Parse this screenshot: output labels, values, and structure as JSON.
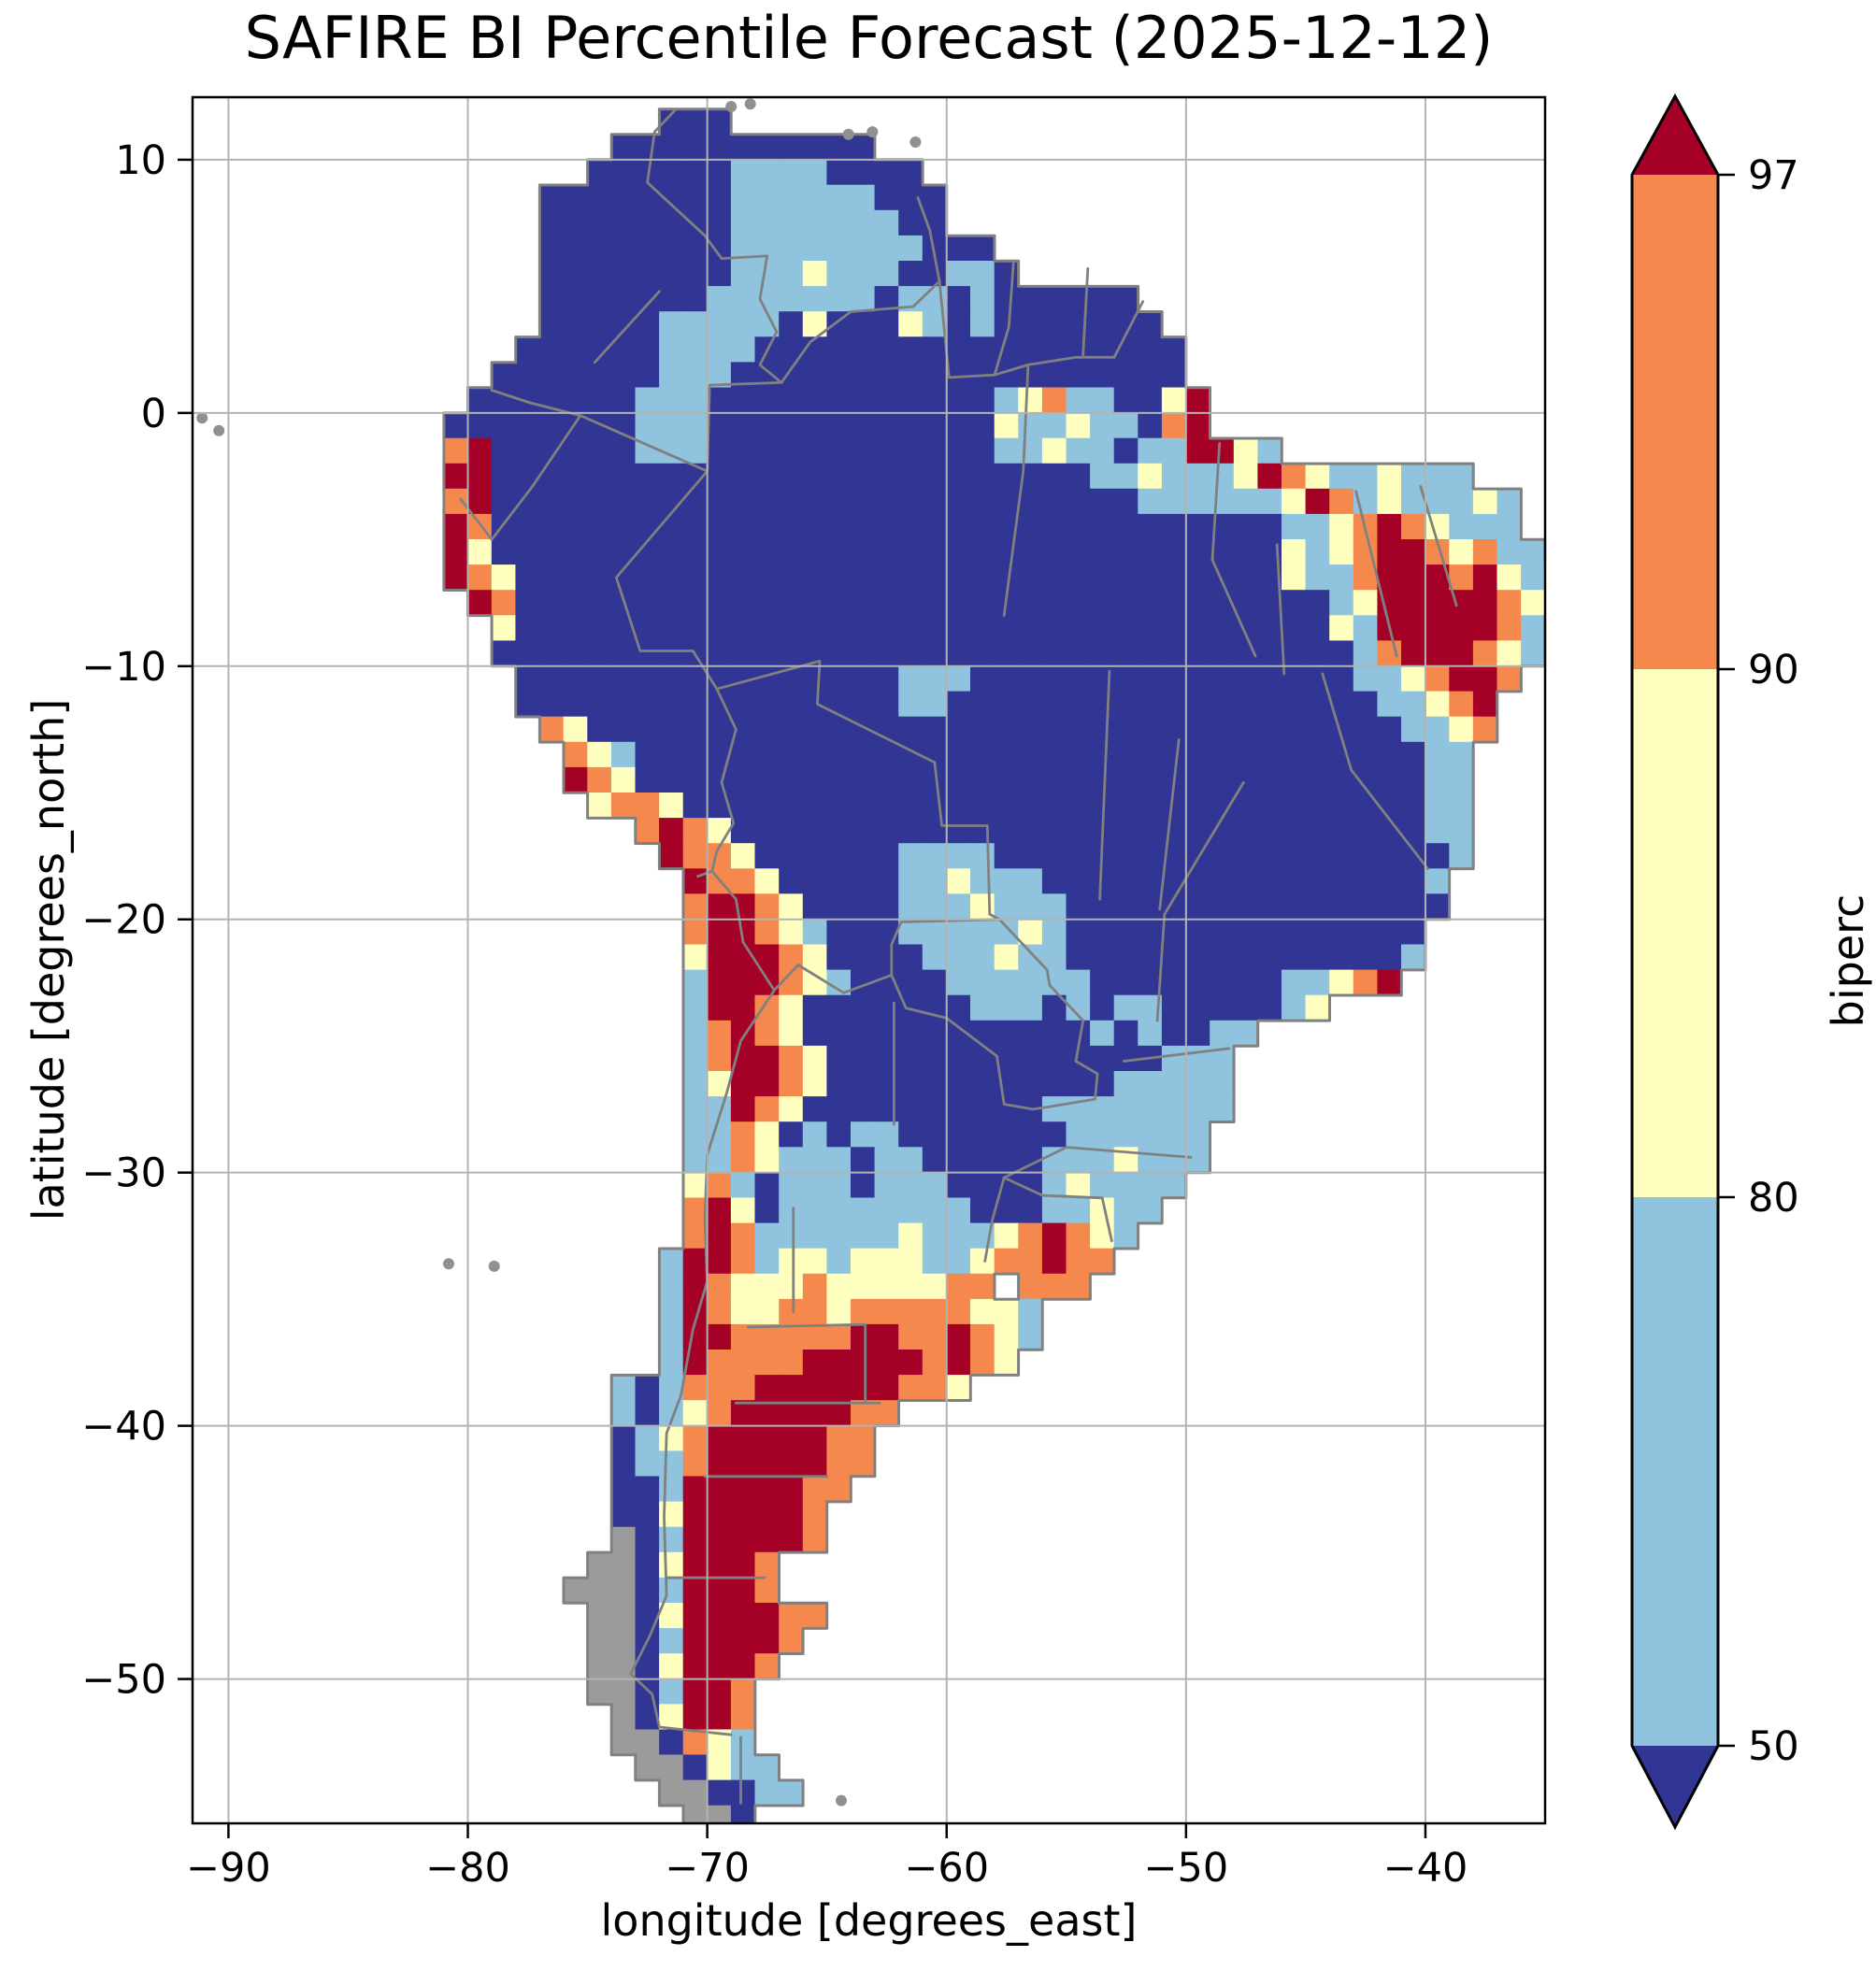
{
  "title": "SAFIRE BI Percentile Forecast (2025-12-12)",
  "axes": {
    "xlabel": "longitude [degrees_east]",
    "ylabel": "latitude [degrees_north]",
    "xticks": [
      {
        "value": -90,
        "label": "−90"
      },
      {
        "value": -80,
        "label": "−80"
      },
      {
        "value": -70,
        "label": "−70"
      },
      {
        "value": -60,
        "label": "−60"
      },
      {
        "value": -50,
        "label": "−50"
      },
      {
        "value": -40,
        "label": "−40"
      }
    ],
    "yticks": [
      {
        "value": 10,
        "label": "10"
      },
      {
        "value": 0,
        "label": "0"
      },
      {
        "value": -10,
        "label": "−10"
      },
      {
        "value": -20,
        "label": "−20"
      },
      {
        "value": -30,
        "label": "−30"
      },
      {
        "value": -40,
        "label": "−40"
      },
      {
        "value": -50,
        "label": "−50"
      }
    ],
    "xlim_deg": [
      -91.5,
      -35.0
    ],
    "ylim_deg": [
      -55.7,
      12.47
    ]
  },
  "colorbar": {
    "label": "biperc",
    "boundaries": [
      50,
      80,
      90,
      97
    ],
    "ticks": [
      {
        "label": "97"
      },
      {
        "label": "90"
      },
      {
        "label": "80"
      },
      {
        "label": "50"
      }
    ],
    "segment_colors_top_to_bottom": [
      "#f5894d",
      "#ffffbf",
      "#8fc3de"
    ],
    "over_color": "#a50026",
    "under_color": "#313695",
    "extend": "both"
  },
  "chart_data": {
    "type": "heatmap",
    "title": "SAFIRE BI Percentile Forecast (2025-12-12)",
    "xlabel": "longitude [degrees_east]",
    "ylabel": "latitude [degrees_north]",
    "xlim": [
      -91.5,
      -35.0
    ],
    "ylim": [
      -55.7,
      12.47
    ],
    "xticks": [
      -90,
      -80,
      -70,
      -60,
      -50,
      -40
    ],
    "yticks": [
      10,
      0,
      -10,
      -20,
      -30,
      -40,
      -50
    ],
    "variable": "biperc",
    "levels": [
      50,
      80,
      90,
      97
    ],
    "level_colors": {
      "under_50": "#313695",
      "50_80": "#8fc3de",
      "80_90": "#ffffbf",
      "90_97": "#f5894d",
      "over_97": "#a50026",
      "no_data": "#9b9b9b"
    },
    "grid_color": "#b3b3b3",
    "border_color": "#808080",
    "ocean_color": "#ffffff",
    "raster": {
      "cell_size_deg": 1,
      "origin_lon": -82,
      "origin_lat": 12,
      "palette": {
        "B": "#313695",
        "b": "#8fc3de",
        "y": "#ffffbf",
        "o": "#f5894d",
        "r": "#a50026",
        "g": "#9b9b9b",
        ".": "none"
      },
      "rows": [
        "..........BBB",
        "........BBBBBBBBBBB",
        ".......BBBBBBbbbbBBBB",
        ".....BBBBBBBBbbbbbbBBB",
        ".....BBBBBBBBbbbbbbbBB",
        ".....BBBBBBBBbbbbbbbbBBB",
        ".....BBBBBBBBbbbybbbBBbbB",
        ".....BBBBBBBbbbbbbbBbbBbBBBBBB",
        ".....BBBBBbbbbbByBBBybBbBBBBBBB",
        "....BBBBBBbbbbBBBBBBBBBBBBBBBBBB",
        "...BBBBBBBbbbBBBBBBBBBBBBBBBBBBB",
        "..BBBBBBBbbbBBBBBBBBBBBBbyobbBByr",
        ".BBBBBBBBbbbBBBBBBBBBBBBybbybbBor",
        ".orBBBBBBbbbBBBBBBBBBBBBbbybbBbbrryb",
        ".rrBBBBBBBBBBBBBBBBBBBBBBBBBbbybbbyroybbybbb",
        ".orBBBBBBBBBBBBBBBBBBBBBBBBBBBbbbbbbyrobybbbyb",
        ".roBBBBBBBBBBBBBBBBBBBBBBBBBBBBBBBBBbbyoroybbb",
        ".ryBBBBBBBBBBBBBBBBBBBBBBBBBBBBBBBBBybyorroyobb",
        ".royBBBBBBBBBBBBBBBBBBBBBBBBBBBBBBBBybborrrorybb",
        "..roBBBBBBBBBBBBBBBBBBBBBBBBBBBBBBBBBBbyrrrrroyb",
        "...yBBBBBBBBBBBBBBBBBBBBBBBBBBBBBBBBBBybrrrrrob",
        "...BBBBBBBBBBBBBBBBBBBBBBBBBBBBBBBBBBBBborrroyb",
        "....BBBBBBBBBBBBBBBBbbbBBBBBBBBBBBBBBBBbbyorro",
        "....BBBBBBBBBBBBBBBBbbBBBBBBBBBBBBBBBBBBbbyor",
        ".....oyBBBBBBBBBBBBBBBBBBBBBBBBBBBBBBBBBBbbyo",
        "......oybBBBBBBBBBBBBBBBBBBBBBBBBBBBBBBBBBbb",
        "......royBBBBBBBBBBBBBBBBBBBBBBBBBBBBBBBBBbb",
        ".......yooyBBBBBBBBBBBBBBBBBBBBBBBBBBBBBBBbb",
        ".........oroyBBBBBBBBBBBBBBBBBBBBBBBBBBBBBbb",
        "..........rooyBBBBBBbbbbBBBBBBBBBBBBBBBBBBBb",
        "...........rooyBBBBBbbybbbBBBBBBBBBBBBBBBBb",
        "...........orroyBBBBbbbybbbBBBBBBBBBBBBBBBB",
        "...........orroybBBBbbbbbybBBBBBBBBBBBBBBB",
        "...........yrrroyBBBBbbbybbBBBBBBBBBBBBBBb",
        "...........brrroybBBBBbbbbbbBBBBBBBBbbyor",
        "...........brroyBBBBBBBbbbBbBbbBBBBBby",
        "...........boroyBBBBBBBBBBBBbBbBBbb",
        "...........borroyBBBBBBBBBBBBBBbbb",
        "...........byrroyBBBBBBBBBBBBbbbbb",
        "...........bbroyBBBBBBBBBBbbbbbbbb",
        "...........bboyBbBbbBBBBBBBbbbbbb",
        "...........bboybbbBbbBBBBBbbbybbb",
        "...........yobBbbbBbbbBBBBbybbbb",
        "...........oryBbbbbbbbbBBBbbybb",
        "...........orobbbbbbybbbyoroyb",
        "..........brrobyybyyybbyooroo",
        "..........broyyyoyyyyyoo.ooo",
        "..........broyyooyoooooyyb",
        "..........brrooooorrooroyb",
        "..........broooorrrrroroy",
        "........bBbooorrrrrrooy",
        "........bBbyorrrrroo",
        "........Bbyorrrrroo",
        "........Bbborrrrroo",
        "........BBbrrrrroo",
        "........BByrrrrro",
        "........gBbrrrrro",
        ".......ggByrrro",
        "......gggBbrrro",
        ".......ggByrrrroo",
        ".......ggBbrrrro",
        ".......ggByrrro",
        ".......ggBbrro",
        "........gByrro",
        "........ggBoyb",
        ".........ggBybb",
        "..........ggBBbb",
        "...........ggB"
      ]
    },
    "borders": [
      [
        [
          -71.3,
          12.0
        ],
        [
          -72.2,
          11.1
        ],
        [
          -72.5,
          9.1
        ],
        [
          -70.1,
          7.0
        ],
        [
          -69.4,
          6.1
        ],
        [
          -67.5,
          6.2
        ],
        [
          -67.8,
          4.5
        ],
        [
          -67.1,
          3.2
        ],
        [
          -67.8,
          1.9
        ],
        [
          -66.9,
          1.2
        ]
      ],
      [
        [
          -79.0,
          0.9
        ],
        [
          -77.4,
          0.4
        ],
        [
          -75.3,
          -0.1
        ]
      ],
      [
        [
          -75.3,
          -0.1
        ],
        [
          -70.0,
          -2.3
        ],
        [
          -69.9,
          1.1
        ],
        [
          -66.9,
          1.2
        ]
      ],
      [
        [
          -80.3,
          -3.4
        ],
        [
          -79.0,
          -5.0
        ],
        [
          -77.3,
          -2.9
        ],
        [
          -75.3,
          -0.1
        ]
      ],
      [
        [
          -70.0,
          -2.3
        ],
        [
          -73.8,
          -6.5
        ],
        [
          -72.8,
          -9.4
        ],
        [
          -70.6,
          -9.4
        ],
        [
          -69.6,
          -10.9
        ]
      ],
      [
        [
          -69.6,
          -10.9
        ],
        [
          -68.8,
          -12.5
        ],
        [
          -69.4,
          -14.6
        ],
        [
          -68.9,
          -16.2
        ],
        [
          -69.6,
          -17.3
        ],
        [
          -69.8,
          -18.1
        ]
      ],
      [
        [
          -69.8,
          -18.1
        ],
        [
          -70.4,
          -18.3
        ]
      ],
      [
        [
          -69.6,
          -10.9
        ],
        [
          -65.3,
          -9.8
        ],
        [
          -65.4,
          -11.5
        ],
        [
          -60.5,
          -13.8
        ],
        [
          -60.2,
          -16.3
        ],
        [
          -58.3,
          -16.3
        ],
        [
          -58.2,
          -19.8
        ],
        [
          -57.8,
          -20.0
        ]
      ],
      [
        [
          -57.8,
          -20.0
        ],
        [
          -61.9,
          -20.1
        ],
        [
          -62.3,
          -21.0
        ],
        [
          -62.3,
          -22.2
        ]
      ],
      [
        [
          -62.3,
          -22.2
        ],
        [
          -64.3,
          -22.9
        ],
        [
          -66.2,
          -21.8
        ],
        [
          -67.2,
          -22.8
        ]
      ],
      [
        [
          -67.2,
          -22.8
        ],
        [
          -68.5,
          -20.9
        ],
        [
          -68.8,
          -19.2
        ],
        [
          -69.8,
          -18.1
        ]
      ],
      [
        [
          -67.2,
          -22.8
        ],
        [
          -68.6,
          -24.8
        ],
        [
          -69.2,
          -26.9
        ],
        [
          -70.0,
          -29.3
        ],
        [
          -70.1,
          -31.9
        ],
        [
          -70.0,
          -34.3
        ],
        [
          -70.6,
          -36.2
        ],
        [
          -71.1,
          -38.8
        ],
        [
          -71.7,
          -40.3
        ],
        [
          -71.8,
          -43.6
        ],
        [
          -71.7,
          -46.7
        ],
        [
          -72.4,
          -48.3
        ],
        [
          -73.2,
          -49.8
        ],
        [
          -72.3,
          -50.6
        ],
        [
          -72.0,
          -51.9
        ],
        [
          -69.0,
          -52.2
        ]
      ],
      [
        [
          -68.6,
          -52.3
        ],
        [
          -68.6,
          -54.9
        ]
      ],
      [
        [
          -62.3,
          -22.2
        ],
        [
          -61.7,
          -23.5
        ],
        [
          -60.0,
          -23.9
        ],
        [
          -57.9,
          -25.4
        ],
        [
          -57.6,
          -27.3
        ],
        [
          -56.4,
          -27.5
        ],
        [
          -55.7,
          -27.4
        ]
      ],
      [
        [
          -57.8,
          -20.0
        ],
        [
          -55.8,
          -22.0
        ],
        [
          -55.7,
          -22.6
        ],
        [
          -54.3,
          -24.0
        ],
        [
          -54.6,
          -25.6
        ]
      ],
      [
        [
          -54.6,
          -25.6
        ],
        [
          -53.7,
          -26.1
        ],
        [
          -53.8,
          -27.1
        ],
        [
          -55.7,
          -27.4
        ]
      ],
      [
        [
          -53.1,
          -32.7
        ],
        [
          -53.5,
          -31.0
        ],
        [
          -56.0,
          -30.9
        ],
        [
          -57.6,
          -30.2
        ]
      ],
      [
        [
          -57.6,
          -30.2
        ],
        [
          -58.1,
          -31.9
        ],
        [
          -58.4,
          -33.5
        ]
      ],
      [
        [
          -66.9,
          1.2
        ],
        [
          -65.7,
          2.8
        ],
        [
          -64.0,
          4.0
        ],
        [
          -61.4,
          4.2
        ]
      ],
      [
        [
          -61.4,
          4.2
        ],
        [
          -60.3,
          5.2
        ],
        [
          -60.7,
          7.2
        ],
        [
          -61.2,
          8.5
        ]
      ],
      [
        [
          -60.3,
          5.2
        ],
        [
          -59.9,
          1.4
        ],
        [
          -58.0,
          1.5
        ]
      ],
      [
        [
          -57.2,
          6.0
        ],
        [
          -57.4,
          3.4
        ],
        [
          -58.0,
          1.5
        ]
      ],
      [
        [
          -58.0,
          1.5
        ],
        [
          -56.6,
          1.9
        ],
        [
          -54.6,
          2.2
        ],
        [
          -53.0,
          2.2
        ],
        [
          -51.8,
          4.4
        ]
      ],
      [
        [
          -54.1,
          5.7
        ],
        [
          -54.3,
          2.3
        ]
      ],
      [
        [
          -56.6,
          1.8
        ],
        [
          -56.8,
          -2.3
        ],
        [
          -57.6,
          -8.0
        ]
      ],
      [
        [
          -48.6,
          -1.2
        ],
        [
          -48.9,
          -5.8
        ],
        [
          -47.1,
          -9.6
        ]
      ],
      [
        [
          -46.2,
          -5.2
        ],
        [
          -45.9,
          -10.3
        ]
      ],
      [
        [
          -42.9,
          -3.1
        ],
        [
          -41.2,
          -9.6
        ]
      ],
      [
        [
          -40.2,
          -2.9
        ],
        [
          -38.7,
          -7.6
        ]
      ],
      [
        [
          -44.3,
          -10.3
        ],
        [
          -43.1,
          -14.1
        ],
        [
          -39.9,
          -18.0
        ]
      ],
      [
        [
          -50.3,
          -12.9
        ],
        [
          -51.1,
          -19.6
        ]
      ],
      [
        [
          -53.2,
          -10.2
        ],
        [
          -53.6,
          -19.2
        ]
      ],
      [
        [
          -47.6,
          -14.6
        ],
        [
          -50.9,
          -19.8
        ],
        [
          -51.2,
          -24.0
        ]
      ],
      [
        [
          -48.2,
          -25.1
        ],
        [
          -52.6,
          -25.6
        ]
      ],
      [
        [
          -49.8,
          -29.4
        ],
        [
          -55.0,
          -29.0
        ],
        [
          -57.6,
          -30.2
        ]
      ],
      [
        [
          -62.2,
          -23.3
        ],
        [
          -62.2,
          -28.1
        ]
      ],
      [
        [
          -68.3,
          -36.1
        ],
        [
          -63.4,
          -36.0
        ],
        [
          -63.4,
          -39.1
        ]
      ],
      [
        [
          -70.1,
          -42.0
        ],
        [
          -65.0,
          -42.0
        ]
      ],
      [
        [
          -71.7,
          -46.0
        ],
        [
          -67.6,
          -46.0
        ]
      ],
      [
        [
          -68.8,
          -39.1
        ],
        [
          -62.8,
          -39.1
        ]
      ],
      [
        [
          -66.4,
          -31.4
        ],
        [
          -66.4,
          -35.5
        ]
      ],
      [
        [
          -74.7,
          2.0
        ],
        [
          -72.0,
          4.8
        ]
      ]
    ],
    "islands": [
      [
        -91.1,
        -0.2
      ],
      [
        -90.4,
        -0.7
      ],
      [
        -80.8,
        -33.6
      ],
      [
        -78.9,
        -33.7
      ],
      [
        -69.0,
        12.1
      ],
      [
        -68.2,
        12.2
      ],
      [
        -64.1,
        11.0
      ],
      [
        -63.1,
        11.1
      ],
      [
        -61.3,
        10.7
      ],
      [
        -64.4,
        -54.8
      ]
    ]
  }
}
